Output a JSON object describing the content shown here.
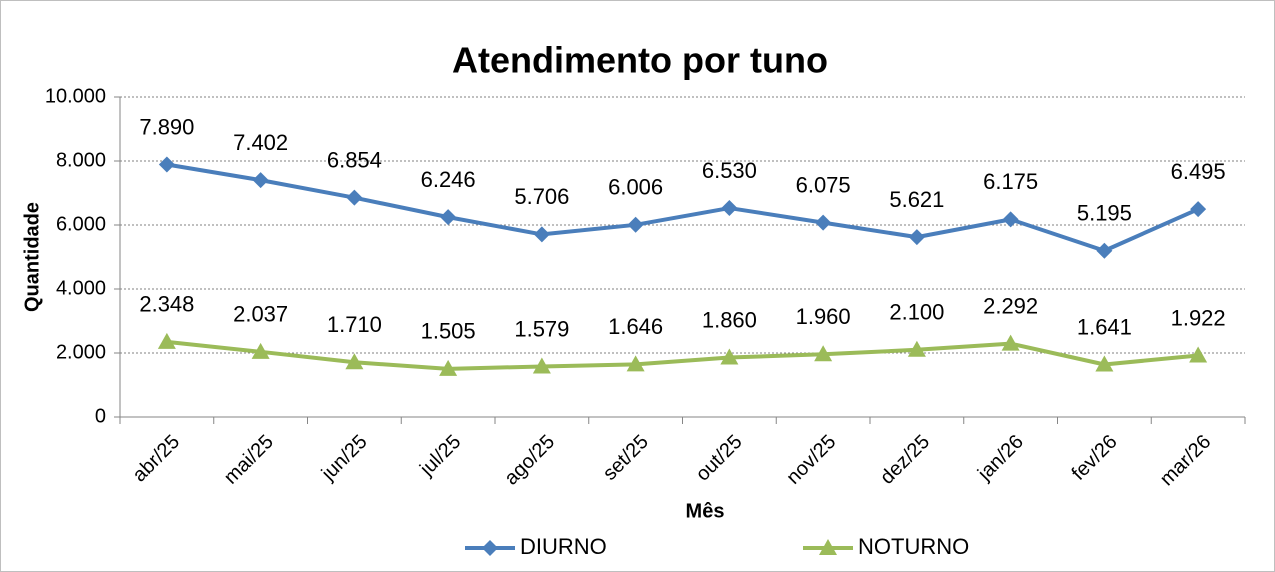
{
  "chart_data": {
    "type": "line",
    "title": "Atendimento por tuno",
    "x_label": "Mês",
    "y_label": "Quantidade",
    "categories": [
      "abr/25",
      "mai/25",
      "jun/25",
      "jul/25",
      "ago/25",
      "set/25",
      "out/25",
      "nov/25",
      "dez/25",
      "jan/26",
      "fev/26",
      "mar/26"
    ],
    "series": [
      {
        "name": "DIURNO",
        "color": "#4a7ebb",
        "marker": "diamond",
        "values": [
          7890,
          7402,
          6854,
          6246,
          5706,
          6006,
          6530,
          6075,
          5621,
          6175,
          5195,
          6495
        ],
        "value_labels": [
          "7.890",
          "7.402",
          "6.854",
          "6.246",
          "5.706",
          "6.006",
          "6.530",
          "6.075",
          "5.621",
          "6.175",
          "5.195",
          "6.495"
        ]
      },
      {
        "name": "NOTURNO",
        "color": "#9bbb59",
        "marker": "triangle",
        "values": [
          2348,
          2037,
          1710,
          1505,
          1579,
          1646,
          1860,
          1960,
          2100,
          2292,
          1641,
          1922
        ],
        "value_labels": [
          "2.348",
          "2.037",
          "1.710",
          "1.505",
          "1.579",
          "1.646",
          "1.860",
          "1.960",
          "2.100",
          "2.292",
          "1.641",
          "1.922"
        ]
      }
    ],
    "ylim": [
      0,
      10000
    ],
    "yticks": [
      0,
      {
        "value": 2000,
        "label": "2.000"
      },
      {
        "value": 4000,
        "label": "4.000"
      },
      {
        "value": 6000,
        "label": "6.000"
      },
      {
        "value": 8000,
        "label": "8.000"
      },
      {
        "value": 10000,
        "label": "10.000"
      }
    ],
    "grid": true,
    "legend": "bottom"
  }
}
